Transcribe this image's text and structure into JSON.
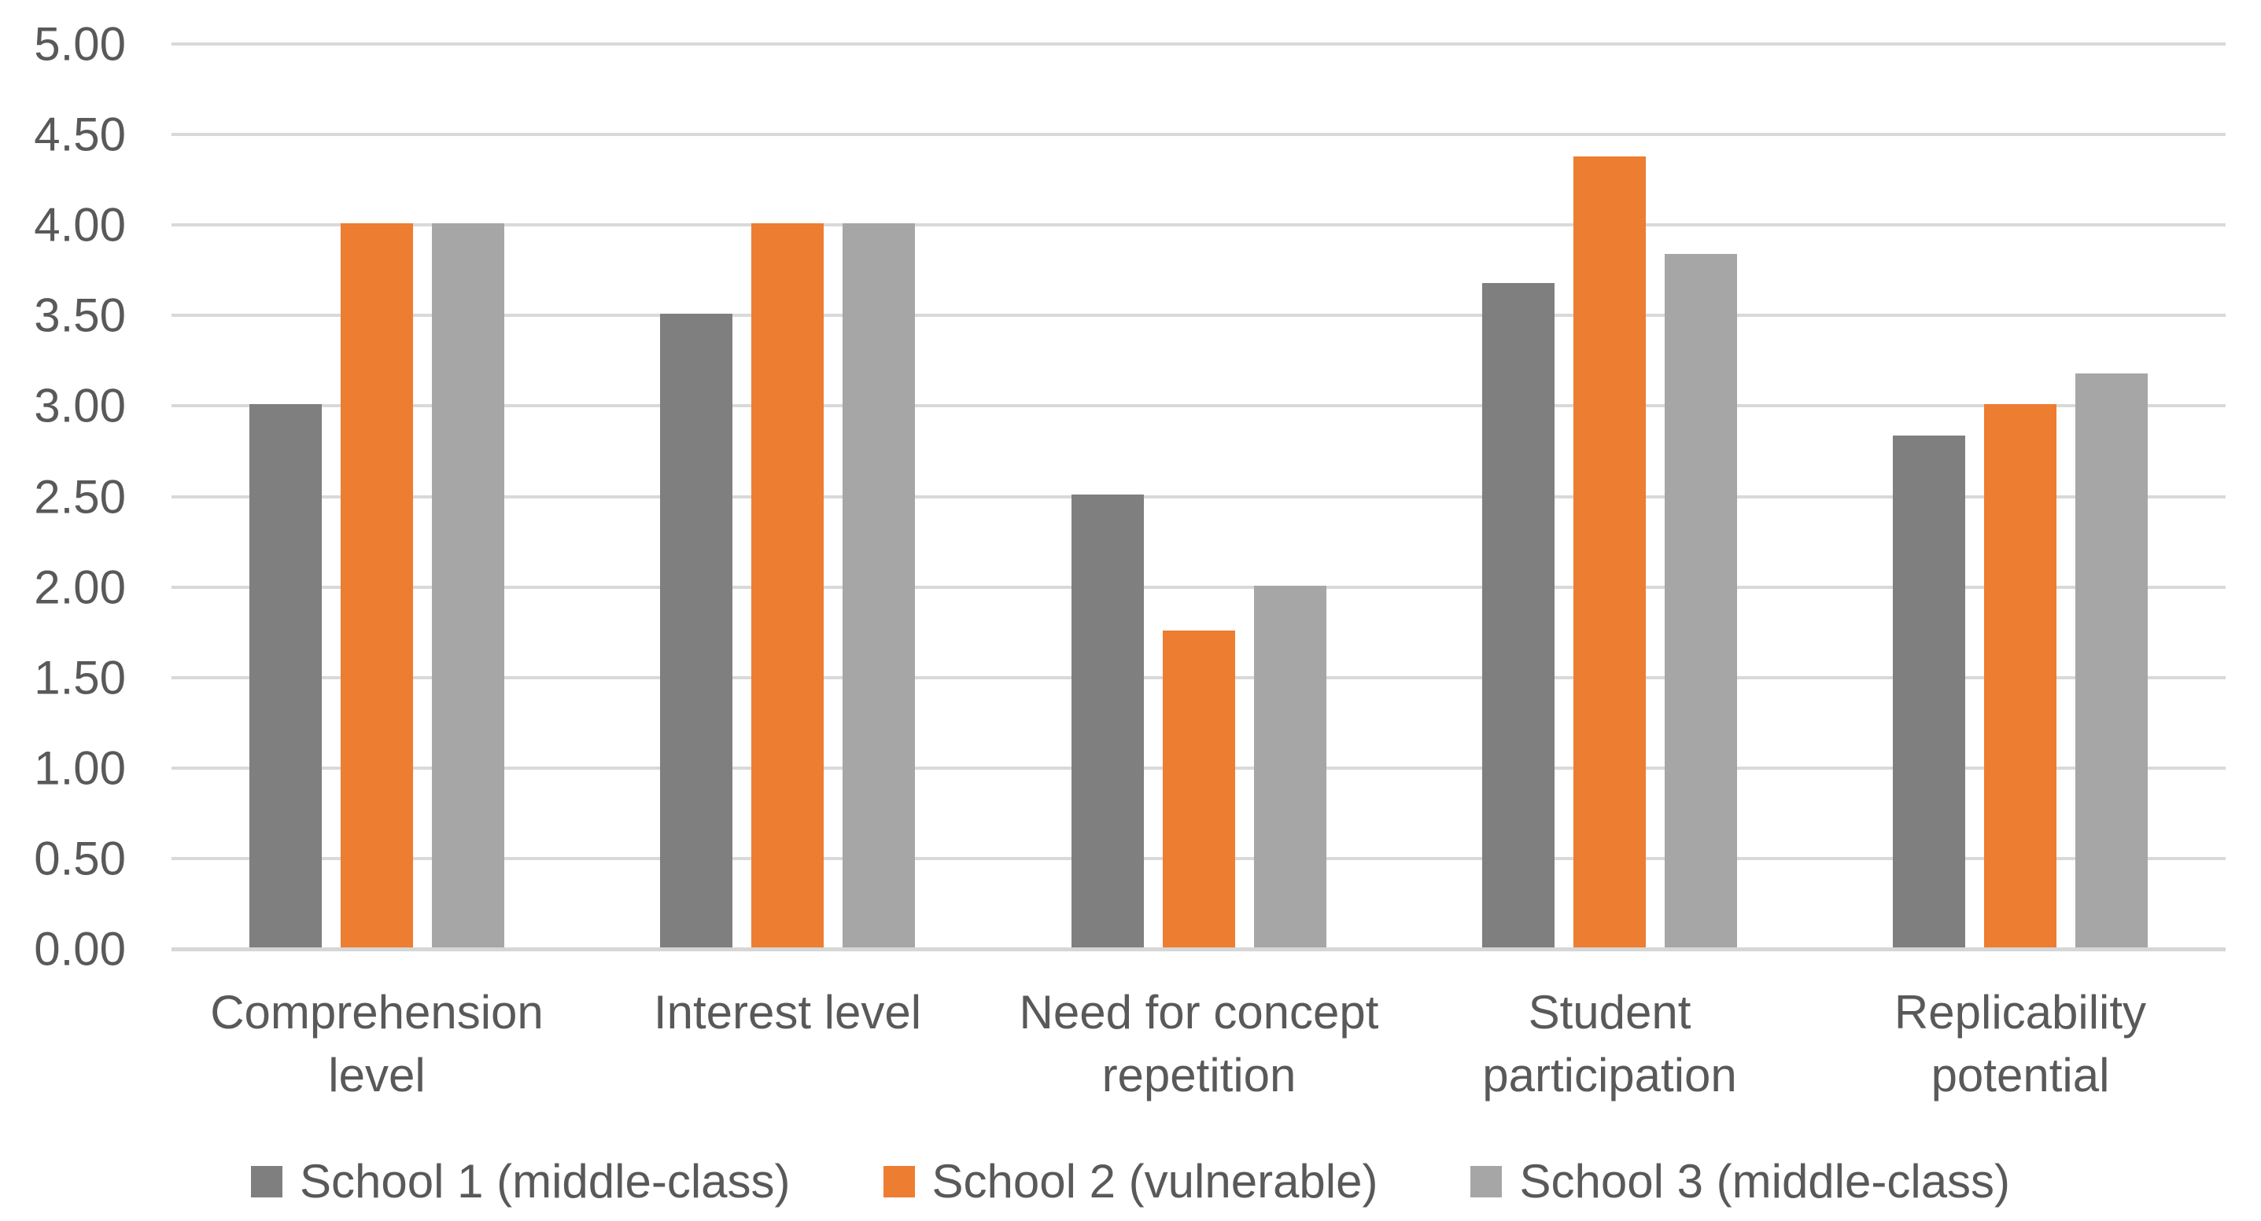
{
  "chart_data": {
    "type": "bar",
    "title": "",
    "xlabel": "",
    "ylabel": "",
    "categories": [
      "Comprehension level",
      "Interest level",
      "Need for concept repetition",
      "Student participation",
      "Replicability potential"
    ],
    "categories_wrapped": [
      [
        "Comprehension",
        "level"
      ],
      [
        "Interest level"
      ],
      [
        "Need for concept",
        "repetition"
      ],
      [
        "Student",
        "participation"
      ],
      [
        "Replicability",
        "potential"
      ]
    ],
    "series": [
      {
        "name": "School 1 (middle-class)",
        "color": "#7F7F7F",
        "values": [
          3.0,
          3.5,
          2.5,
          3.67,
          2.83
        ]
      },
      {
        "name": "School 2 (vulnerable)",
        "color": "#ED7D31",
        "values": [
          4.0,
          4.0,
          1.75,
          4.37,
          3.0
        ]
      },
      {
        "name": "School 3 (middle-class)",
        "color": "#A6A6A6",
        "values": [
          4.0,
          4.0,
          2.0,
          3.83,
          3.17
        ]
      }
    ],
    "ylim": [
      0,
      5
    ],
    "ytick_step": 0.5,
    "ytick_labels": [
      "0.00",
      "0.50",
      "1.00",
      "1.50",
      "2.00",
      "2.50",
      "3.00",
      "3.50",
      "4.00",
      "4.50",
      "5.00"
    ],
    "grid": true,
    "legend_position": "bottom",
    "colors": {
      "gridline": "#D9D9D9",
      "axis_line": "#D6D6D6",
      "text": "#595959",
      "background": "#FFFFFF"
    }
  }
}
